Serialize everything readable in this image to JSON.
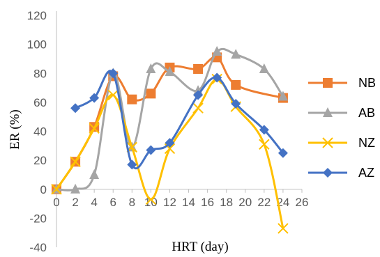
{
  "chart_data": {
    "type": "scatter",
    "xlabel": "HRT (day)",
    "ylabel": "ER (%)",
    "xlim": [
      0,
      26
    ],
    "ylim": [
      -40,
      120
    ],
    "xticks": [
      0,
      2,
      4,
      6,
      8,
      10,
      12,
      14,
      16,
      18,
      20,
      22,
      24,
      26
    ],
    "yticks": [
      -40,
      -20,
      0,
      20,
      40,
      60,
      80,
      100,
      120
    ],
    "grid": false,
    "legend": "right",
    "smooth": true,
    "series": [
      {
        "name": "NB",
        "color": "#ED7D31",
        "marker": "square",
        "x": [
          0,
          2,
          4,
          6,
          8,
          10,
          12,
          15,
          17,
          19,
          24
        ],
        "y": [
          0,
          19,
          43,
          78,
          62,
          66,
          84,
          83,
          91,
          72,
          63
        ]
      },
      {
        "name": "AB",
        "color": "#A5A5A5",
        "marker": "triangle",
        "x": [
          0,
          2,
          4,
          6,
          8,
          10,
          12,
          15,
          17,
          19,
          22,
          24
        ],
        "y": [
          0,
          0,
          10,
          80,
          29,
          83,
          81,
          68,
          95,
          93,
          83,
          64
        ]
      },
      {
        "name": "NZ",
        "color": "#FFC000",
        "marker": "x",
        "x": [
          0,
          2,
          4,
          6,
          8,
          10,
          12,
          15,
          17,
          19,
          22,
          24
        ],
        "y": [
          0,
          19,
          42,
          65,
          29,
          -7,
          28,
          56,
          76,
          57,
          31,
          -27
        ]
      },
      {
        "name": "AZ",
        "color": "#4472C4",
        "marker": "diamond",
        "x": [
          2,
          4,
          6,
          8,
          10,
          12,
          15,
          17,
          19,
          22,
          24
        ],
        "y": [
          56,
          63,
          80,
          17,
          27,
          32,
          65,
          77,
          59,
          41,
          25
        ]
      }
    ]
  }
}
